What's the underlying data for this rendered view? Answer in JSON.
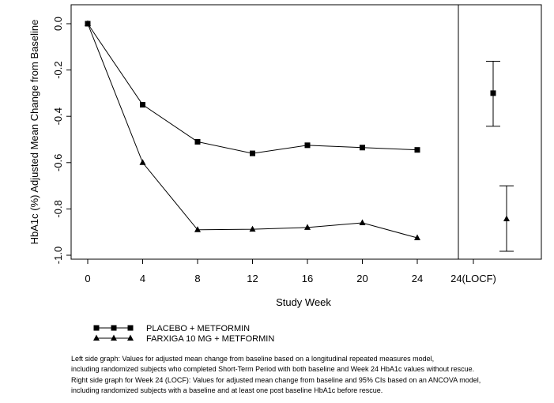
{
  "chart_data": {
    "type": "line",
    "ylabel": "HbA1c (%) Adjusted Mean Change from Baseline",
    "xlabel": "Study Week",
    "xticks": [
      "0",
      "4",
      "8",
      "12",
      "16",
      "20",
      "24",
      "24(LOCF)"
    ],
    "yticks": [
      "0.0",
      "-0.2",
      "-0.4",
      "-0.6",
      "-0.8",
      "-1.0"
    ],
    "ylim": [
      -1.03,
      0.05
    ],
    "xlim": [
      -1,
      28
    ],
    "series": [
      {
        "name": "PLACEBO + METFORMIN",
        "marker": "square",
        "x": [
          0,
          4,
          8,
          12,
          16,
          20,
          24
        ],
        "values": [
          0.0,
          -0.35,
          -0.51,
          -0.56,
          -0.525,
          -0.535,
          -0.545
        ]
      },
      {
        "name": "FARXIGA 10 MG + METFORMIN",
        "marker": "triangle",
        "x": [
          0,
          4,
          8,
          12,
          16,
          20,
          24
        ],
        "values": [
          0.0,
          -0.6,
          -0.89,
          -0.888,
          -0.88,
          -0.86,
          -0.925
        ]
      }
    ],
    "locf": [
      {
        "series": "PLACEBO + METFORMIN",
        "marker": "square",
        "mean": -0.3,
        "lower": -0.443,
        "upper": -0.162
      },
      {
        "series": "FARXIGA 10 MG + METFORMIN",
        "marker": "triangle",
        "mean": -0.843,
        "lower": -0.983,
        "upper": -0.7
      }
    ]
  },
  "footnotes": [
    "Left side graph: Values for adjusted mean change from baseline based on a longitudinal repeated measures model,",
    "including randomized subjects who completed Short-Term Period with both baseline and Week 24 HbA1c values without rescue.",
    "Right side graph for Week 24 (LOCF): Values for adjusted mean change from baseline and 95% CIs based on an ANCOVA model,",
    "including randomized subjects with a baseline and at least one post baseline HbA1c before rescue."
  ]
}
